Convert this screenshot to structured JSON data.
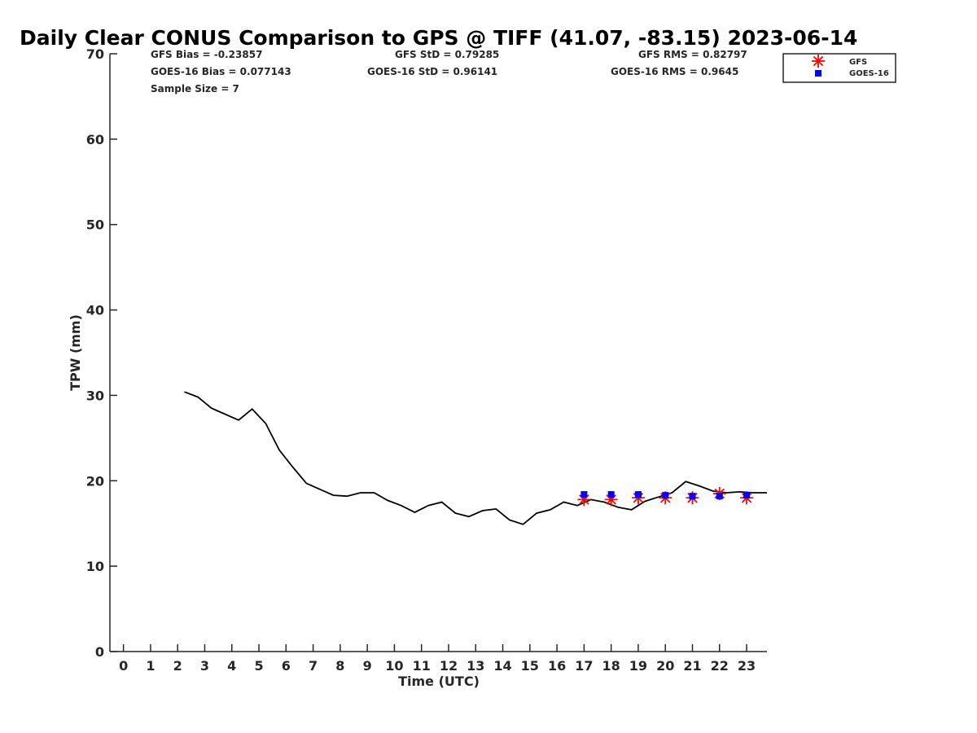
{
  "chart_data": {
    "type": "line",
    "title": "Daily Clear CONUS Comparison to GPS @ TIFF (41.07, -83.15) 2023-06-14",
    "xlabel": "Time (UTC)",
    "ylabel": "TPW (mm)",
    "xlim": [
      -0.5,
      23.75
    ],
    "ylim": [
      0,
      70
    ],
    "x_ticks": [
      0,
      1,
      2,
      3,
      4,
      5,
      6,
      7,
      8,
      9,
      10,
      11,
      12,
      13,
      14,
      15,
      16,
      17,
      18,
      19,
      20,
      21,
      22,
      23
    ],
    "y_ticks": [
      0,
      10,
      20,
      30,
      40,
      50,
      60,
      70
    ],
    "grid": false,
    "legend_position": "top-right",
    "stats": {
      "gfs_bias": "GFS Bias = -0.23857",
      "gfs_std": "GFS StD = 0.79285",
      "gfs_rms": "GFS RMS = 0.82797",
      "goes_bias": "GOES-16 Bias = 0.077143",
      "goes_std": "GOES-16 StD = 0.96141",
      "goes_rms": "GOES-16 RMS = 0.9645",
      "sample_size": "Sample Size = 7"
    },
    "series": [
      {
        "kind": "line",
        "color": "#000000",
        "x": [
          2.25,
          2.75,
          3.25,
          3.75,
          4.25,
          4.75,
          5.25,
          5.75,
          6.25,
          6.75,
          7.25,
          7.75,
          8.25,
          8.75,
          9.25,
          9.75,
          10.25,
          10.75,
          11.25,
          11.75,
          12.25,
          12.75,
          13.25,
          13.75,
          14.25,
          14.75,
          15.25,
          15.75,
          16.25,
          16.75,
          17.25,
          17.75,
          18.25,
          18.75,
          19.25,
          19.75,
          20.25,
          20.75,
          21.25,
          21.75,
          22.25,
          22.75,
          23.25,
          23.75
        ],
        "y": [
          30.4,
          29.8,
          28.5,
          27.8,
          27.1,
          28.4,
          26.7,
          23.6,
          21.6,
          19.7,
          19.0,
          18.3,
          18.2,
          18.6,
          18.6,
          17.7,
          17.1,
          16.3,
          17.1,
          17.5,
          16.2,
          15.8,
          16.5,
          16.7,
          15.4,
          14.9,
          16.2,
          16.6,
          17.5,
          17.1,
          17.8,
          17.5,
          16.9,
          16.6,
          17.6,
          18.1,
          18.6,
          19.9,
          19.4,
          18.8,
          18.6,
          18.7,
          18.6,
          18.6
        ]
      },
      {
        "name": "GFS",
        "kind": "scatter",
        "marker": "asterisk",
        "color": "#ff0000",
        "x": [
          17,
          18,
          19,
          20,
          21,
          22,
          23
        ],
        "y": [
          17.8,
          17.8,
          18.0,
          18.0,
          18.0,
          18.5,
          18.0
        ]
      },
      {
        "name": "GOES-16",
        "kind": "scatter",
        "marker": "square",
        "color": "#0000ff",
        "x": [
          17,
          18,
          19,
          20,
          21,
          22,
          23
        ],
        "y": [
          18.4,
          18.4,
          18.4,
          18.3,
          18.2,
          18.2,
          18.3
        ]
      }
    ]
  }
}
